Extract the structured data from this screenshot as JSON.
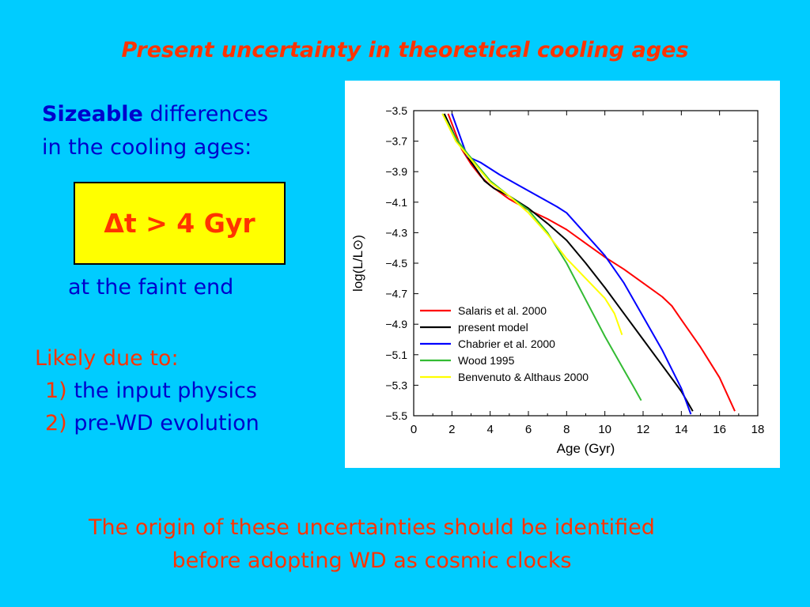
{
  "slide": {
    "title": "Present uncertainty in theoretical cooling ages",
    "intro_bold": "Sizeable",
    "intro_rest": "differences",
    "intro_line2": "in the cooling ages:",
    "box_text": "Δt > 4 Gyr",
    "faint_end": "at the faint end",
    "likely": "Likely due to:",
    "item1_num": "1)",
    "item1_text": "the input physics",
    "item2_num": "2)",
    "item2_text": "pre-WD evolution",
    "bottom_line1": "The origin of these uncertainties should be identified",
    "bottom_line2": "before adopting WD as cosmic clocks"
  },
  "colors": {
    "background": "#00ccff",
    "title_red": "#ff3300",
    "text_blue": "#0000cc",
    "box_yellow": "#ffff00"
  },
  "chart_data": {
    "type": "line",
    "xlabel": "Age (Gyr)",
    "ylabel": "log(L/L⊙)",
    "xlim": [
      0,
      18
    ],
    "ylim": [
      -5.5,
      -3.5
    ],
    "xticks": [
      0,
      2,
      4,
      6,
      8,
      10,
      12,
      14,
      16,
      18
    ],
    "yticks": [
      -3.5,
      -3.7,
      -3.9,
      -4.1,
      -4.3,
      -4.5,
      -4.7,
      -4.9,
      -5.1,
      -5.3,
      -5.5
    ],
    "legend_position": "lower-left",
    "series": [
      {
        "name": "Salaris et al. 2000",
        "color": "#ff0000",
        "points": [
          [
            1.8,
            -3.52
          ],
          [
            2.5,
            -3.75
          ],
          [
            3.0,
            -3.85
          ],
          [
            3.5,
            -3.93
          ],
          [
            4.0,
            -3.99
          ],
          [
            5.0,
            -4.08
          ],
          [
            6.0,
            -4.15
          ],
          [
            7.0,
            -4.21
          ],
          [
            8.0,
            -4.28
          ],
          [
            9.0,
            -4.37
          ],
          [
            10.0,
            -4.46
          ],
          [
            11.0,
            -4.54
          ],
          [
            12.0,
            -4.63
          ],
          [
            13.0,
            -4.72
          ],
          [
            13.5,
            -4.78
          ],
          [
            14.0,
            -4.87
          ],
          [
            15.0,
            -5.05
          ],
          [
            16.0,
            -5.25
          ],
          [
            16.8,
            -5.47
          ]
        ]
      },
      {
        "name": "present model",
        "color": "#000000",
        "points": [
          [
            1.6,
            -3.52
          ],
          [
            2.2,
            -3.68
          ],
          [
            2.8,
            -3.8
          ],
          [
            3.2,
            -3.87
          ],
          [
            3.7,
            -3.96
          ],
          [
            4.2,
            -4.01
          ],
          [
            5.0,
            -4.06
          ],
          [
            6.0,
            -4.14
          ],
          [
            7.0,
            -4.24
          ],
          [
            8.0,
            -4.35
          ],
          [
            9.0,
            -4.5
          ],
          [
            10.0,
            -4.66
          ],
          [
            11.0,
            -4.83
          ],
          [
            12.0,
            -5.0
          ],
          [
            13.0,
            -5.17
          ],
          [
            14.0,
            -5.34
          ],
          [
            14.6,
            -5.47
          ]
        ]
      },
      {
        "name": "Chabrier et al. 2000",
        "color": "#0000ff",
        "points": [
          [
            2.0,
            -3.52
          ],
          [
            2.8,
            -3.8
          ],
          [
            3.5,
            -3.84
          ],
          [
            4.5,
            -3.92
          ],
          [
            5.5,
            -3.99
          ],
          [
            6.5,
            -4.06
          ],
          [
            7.5,
            -4.13
          ],
          [
            8.0,
            -4.17
          ],
          [
            9.0,
            -4.31
          ],
          [
            10.0,
            -4.45
          ],
          [
            11.0,
            -4.63
          ],
          [
            12.0,
            -4.85
          ],
          [
            13.0,
            -5.07
          ],
          [
            14.0,
            -5.32
          ],
          [
            14.5,
            -5.49
          ]
        ]
      },
      {
        "name": "Wood 1995",
        "color": "#33bb33",
        "points": [
          [
            1.5,
            -3.52
          ],
          [
            2.2,
            -3.68
          ],
          [
            2.8,
            -3.78
          ],
          [
            4.0,
            -3.96
          ],
          [
            5.0,
            -4.06
          ],
          [
            6.0,
            -4.15
          ],
          [
            7.0,
            -4.3
          ],
          [
            8.0,
            -4.5
          ],
          [
            9.0,
            -4.74
          ],
          [
            10.0,
            -4.98
          ],
          [
            11.0,
            -5.2
          ],
          [
            11.5,
            -5.31
          ],
          [
            11.9,
            -5.4
          ]
        ]
      },
      {
        "name": "Benvenuto & Althaus 2000",
        "color": "#ffff00",
        "points": [
          [
            1.5,
            -3.52
          ],
          [
            2.2,
            -3.7
          ],
          [
            3.0,
            -3.82
          ],
          [
            4.0,
            -3.97
          ],
          [
            5.0,
            -4.06
          ],
          [
            6.0,
            -4.17
          ],
          [
            7.0,
            -4.31
          ],
          [
            8.0,
            -4.47
          ],
          [
            9.0,
            -4.6
          ],
          [
            10.0,
            -4.73
          ],
          [
            10.5,
            -4.83
          ],
          [
            10.9,
            -4.97
          ]
        ]
      }
    ]
  }
}
